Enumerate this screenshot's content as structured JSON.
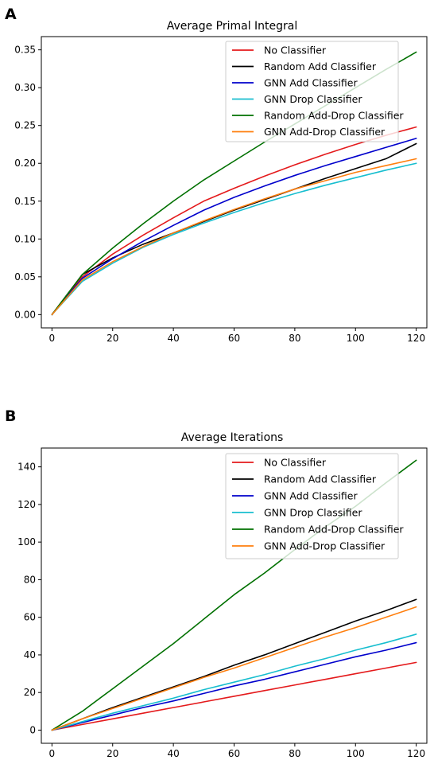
{
  "colors": {
    "no": "#e41a1c",
    "random_add": "#000000",
    "gnn_add": "#0000cc",
    "gnn_drop": "#17becf",
    "random_add_drop": "#007000",
    "gnn_add_drop": "#ff7f0e"
  },
  "chart_data": [
    {
      "panel_label": "A",
      "type": "line",
      "title": "Average Primal Integral",
      "xlabel": "",
      "ylabel": "",
      "xlim": [
        -3.5,
        123.5
      ],
      "ylim": [
        -0.0175,
        0.3675
      ],
      "xticks": [
        0,
        20,
        40,
        60,
        80,
        100,
        120
      ],
      "yticks": [
        0.0,
        0.05,
        0.1,
        0.15,
        0.2,
        0.25,
        0.3,
        0.35
      ],
      "ytick_labels": [
        "0.00",
        "0.05",
        "0.10",
        "0.15",
        "0.20",
        "0.25",
        "0.30",
        "0.35"
      ],
      "legend_position": "top-right",
      "grid": false,
      "x": [
        0,
        10,
        20,
        30,
        40,
        50,
        60,
        70,
        80,
        90,
        100,
        110,
        120
      ],
      "series": [
        {
          "name": "No Classifier",
          "color_key": "no",
          "values": [
            0,
            0.05,
            0.08,
            0.105,
            0.128,
            0.15,
            0.167,
            0.183,
            0.198,
            0.212,
            0.225,
            0.237,
            0.248
          ]
        },
        {
          "name": "Random Add Classifier",
          "color_key": "random_add",
          "values": [
            0,
            0.053,
            0.075,
            0.093,
            0.108,
            0.123,
            0.138,
            0.152,
            0.166,
            0.18,
            0.193,
            0.206,
            0.226
          ]
        },
        {
          "name": "GNN Add Classifier",
          "color_key": "gnn_add",
          "values": [
            0,
            0.048,
            0.074,
            0.097,
            0.118,
            0.138,
            0.155,
            0.17,
            0.184,
            0.197,
            0.209,
            0.221,
            0.233
          ]
        },
        {
          "name": "GNN Drop Classifier",
          "color_key": "gnn_drop",
          "values": [
            0,
            0.044,
            0.068,
            0.089,
            0.106,
            0.121,
            0.135,
            0.148,
            0.16,
            0.171,
            0.181,
            0.191,
            0.2
          ]
        },
        {
          "name": "Random Add-Drop Classifier",
          "color_key": "random_add_drop",
          "values": [
            0,
            0.053,
            0.088,
            0.12,
            0.15,
            0.178,
            0.203,
            0.228,
            0.252,
            0.276,
            0.3,
            0.324,
            0.347
          ]
        },
        {
          "name": "GNN Add-Drop Classifier",
          "color_key": "gnn_add_drop",
          "values": [
            0,
            0.046,
            0.07,
            0.09,
            0.108,
            0.124,
            0.139,
            0.153,
            0.166,
            0.177,
            0.188,
            0.197,
            0.206
          ]
        }
      ]
    },
    {
      "panel_label": "B",
      "type": "line",
      "title": "Average Iterations",
      "xlabel": "",
      "ylabel": "",
      "xlim": [
        -3.5,
        123.5
      ],
      "ylim": [
        -7,
        150
      ],
      "xticks": [
        0,
        20,
        40,
        60,
        80,
        100,
        120
      ],
      "yticks": [
        0,
        20,
        40,
        60,
        80,
        100,
        120,
        140
      ],
      "ytick_labels": [
        "0",
        "20",
        "40",
        "60",
        "80",
        "100",
        "120",
        "140"
      ],
      "legend_position": "top-right",
      "grid": false,
      "x": [
        0,
        10,
        20,
        30,
        40,
        50,
        60,
        70,
        80,
        90,
        100,
        110,
        120
      ],
      "series": [
        {
          "name": "No Classifier",
          "color_key": "no",
          "values": [
            0,
            3.0,
            6.0,
            9.0,
            12.0,
            15.0,
            18.0,
            21.0,
            24.0,
            27.0,
            30.0,
            33.0,
            36.0
          ]
        },
        {
          "name": "Random Add Classifier",
          "color_key": "random_add",
          "values": [
            0,
            6.0,
            12.0,
            17.5,
            23.0,
            28.5,
            34.5,
            40.0,
            46.0,
            52.0,
            58.0,
            63.5,
            69.5
          ]
        },
        {
          "name": "GNN Add Classifier",
          "color_key": "gnn_add",
          "values": [
            0,
            4.0,
            8.0,
            12.0,
            15.5,
            19.5,
            23.5,
            27.0,
            31.0,
            35.0,
            39.0,
            42.5,
            46.5
          ]
        },
        {
          "name": "GNN Drop Classifier",
          "color_key": "gnn_drop",
          "values": [
            0,
            4.5,
            9.0,
            13.0,
            17.0,
            21.5,
            25.5,
            29.5,
            34.0,
            38.0,
            42.5,
            46.5,
            51.0
          ]
        },
        {
          "name": "Random Add-Drop Classifier",
          "color_key": "random_add_drop",
          "values": [
            0,
            10.0,
            22.0,
            34.0,
            46.0,
            59.0,
            72.0,
            83.5,
            96.0,
            108.0,
            119.0,
            131.5,
            143.5
          ]
        },
        {
          "name": "GNN Add-Drop Classifier",
          "color_key": "gnn_add_drop",
          "values": [
            0,
            6.0,
            11.5,
            17.0,
            22.5,
            28.0,
            33.0,
            38.5,
            44.0,
            49.5,
            54.5,
            60.0,
            65.5
          ]
        }
      ]
    }
  ]
}
